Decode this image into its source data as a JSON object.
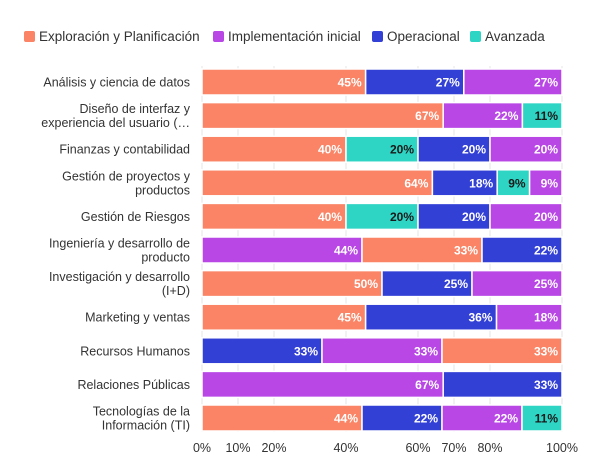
{
  "chart_data": {
    "type": "bar",
    "orientation": "horizontal",
    "stacked": true,
    "normalized_percent": true,
    "legend_position": "top",
    "grid": true,
    "xlim": [
      0,
      100
    ],
    "x_ticks": [
      "0%",
      "10%",
      "20%",
      "40%",
      "60%",
      "70%",
      "80%",
      "100%"
    ],
    "x_tick_values": [
      0,
      10,
      20,
      40,
      60,
      70,
      80,
      100
    ],
    "legend": [
      {
        "key": "exp",
        "name": "Exploración y Planificación",
        "color": "#FA8465"
      },
      {
        "key": "imp",
        "name": "Implementación inicial",
        "color": "#B847E6"
      },
      {
        "key": "ope",
        "name": "Operacional",
        "color": "#3340D6"
      },
      {
        "key": "ava",
        "name": "Avanzada",
        "color": "#2ED4C4"
      }
    ],
    "categories": [
      {
        "label": [
          "Análisis y ciencia de datos"
        ],
        "segments": [
          {
            "series": "exp",
            "value": 45,
            "label": "45%"
          },
          {
            "series": "ope",
            "value": 27,
            "label": "27%"
          },
          {
            "series": "imp",
            "value": 27,
            "label": "27%"
          }
        ]
      },
      {
        "label": [
          "Diseño de interfaz y",
          "experiencia del usuario (…"
        ],
        "segments": [
          {
            "series": "exp",
            "value": 67,
            "label": "67%"
          },
          {
            "series": "imp",
            "value": 22,
            "label": "22%"
          },
          {
            "series": "ava",
            "value": 11,
            "label": "11%"
          }
        ]
      },
      {
        "label": [
          "Finanzas y contabilidad"
        ],
        "segments": [
          {
            "series": "exp",
            "value": 40,
            "label": "40%"
          },
          {
            "series": "ava",
            "value": 20,
            "label": "20%"
          },
          {
            "series": "ope",
            "value": 20,
            "label": "20%"
          },
          {
            "series": "imp",
            "value": 20,
            "label": "20%"
          }
        ]
      },
      {
        "label": [
          "Gestión de proyectos y",
          "productos"
        ],
        "segments": [
          {
            "series": "exp",
            "value": 64,
            "label": "64%"
          },
          {
            "series": "ope",
            "value": 18,
            "label": "18%"
          },
          {
            "series": "ava",
            "value": 9,
            "label": "9%"
          },
          {
            "series": "imp",
            "value": 9,
            "label": "9%"
          }
        ]
      },
      {
        "label": [
          "Gestión de Riesgos"
        ],
        "segments": [
          {
            "series": "exp",
            "value": 40,
            "label": "40%"
          },
          {
            "series": "ava",
            "value": 20,
            "label": "20%"
          },
          {
            "series": "ope",
            "value": 20,
            "label": "20%"
          },
          {
            "series": "imp",
            "value": 20,
            "label": "20%"
          }
        ]
      },
      {
        "label": [
          "Ingeniería y desarrollo de",
          "producto"
        ],
        "segments": [
          {
            "series": "imp",
            "value": 44,
            "label": "44%"
          },
          {
            "series": "exp",
            "value": 33,
            "label": "33%"
          },
          {
            "series": "ope",
            "value": 22,
            "label": "22%"
          }
        ]
      },
      {
        "label": [
          "Investigación y desarrollo",
          "(I+D)"
        ],
        "segments": [
          {
            "series": "exp",
            "value": 50,
            "label": "50%"
          },
          {
            "series": "ope",
            "value": 25,
            "label": "25%"
          },
          {
            "series": "imp",
            "value": 25,
            "label": "25%"
          }
        ]
      },
      {
        "label": [
          "Marketing y ventas"
        ],
        "segments": [
          {
            "series": "exp",
            "value": 45,
            "label": "45%"
          },
          {
            "series": "ope",
            "value": 36,
            "label": "36%"
          },
          {
            "series": "imp",
            "value": 18,
            "label": "18%"
          }
        ]
      },
      {
        "label": [
          "Recursos Humanos"
        ],
        "segments": [
          {
            "series": "ope",
            "value": 33,
            "label": "33%"
          },
          {
            "series": "imp",
            "value": 33,
            "label": "33%"
          },
          {
            "series": "exp",
            "value": 33,
            "label": "33%"
          }
        ]
      },
      {
        "label": [
          "Relaciones Públicas"
        ],
        "segments": [
          {
            "series": "imp",
            "value": 67,
            "label": "67%"
          },
          {
            "series": "ope",
            "value": 33,
            "label": "33%"
          }
        ]
      },
      {
        "label": [
          "Tecnologías de la",
          "Información (TI)"
        ],
        "segments": [
          {
            "series": "exp",
            "value": 44,
            "label": "44%"
          },
          {
            "series": "ope",
            "value": 22,
            "label": "22%"
          },
          {
            "series": "imp",
            "value": 22,
            "label": "22%"
          },
          {
            "series": "ava",
            "value": 11,
            "label": "11%"
          }
        ]
      }
    ]
  }
}
